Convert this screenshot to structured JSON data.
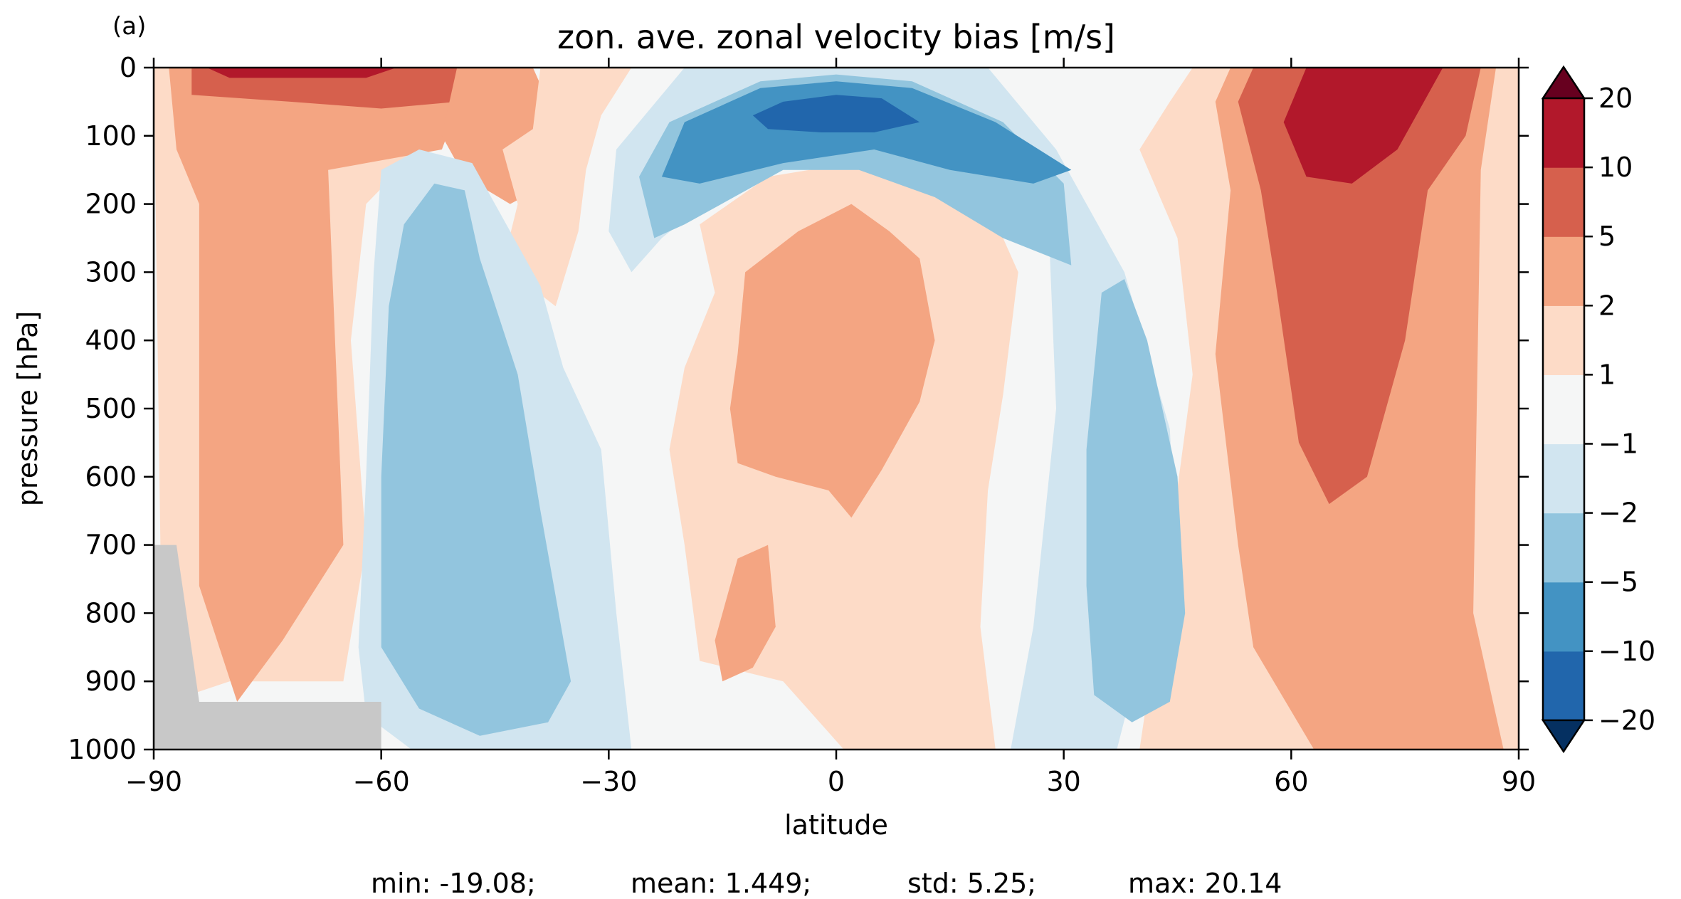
{
  "panel_label": "(a)",
  "stats": {
    "min": "min: -19.08;",
    "mean": "mean: 1.449;",
    "std": "std: 5.25;",
    "max": "max: 20.14"
  },
  "colors": {
    "lt_-20": "#053061",
    "-20_-10": "#2166ac",
    "-10_-5": "#4393c3",
    "-5_-2": "#92c5de",
    "-2_-1": "#d1e5f0",
    "-1_1": "#f5f6f6",
    "1_2": "#fddbc7",
    "2_5": "#f4a582",
    "5_10": "#d6604d",
    "10_20": "#b2182b",
    "gt_20": "#67001f",
    "missing": "#c8c8c8"
  },
  "chart_data": {
    "type": "heatmap",
    "subtype": "filled-contour",
    "title": "zon. ave. zonal velocity bias [m/s]",
    "xlabel": "latitude",
    "ylabel": "pressure [hPa]",
    "xlim": [
      -90,
      90
    ],
    "ylim": [
      1000,
      0
    ],
    "y_inverted": true,
    "xticks": [
      -90,
      -60,
      -30,
      0,
      30,
      60,
      90
    ],
    "xtick_labels": [
      "−90",
      "−60",
      "−30",
      "0",
      "30",
      "60",
      "90"
    ],
    "yticks": [
      0,
      100,
      200,
      300,
      400,
      500,
      600,
      700,
      800,
      900,
      1000
    ],
    "ytick_labels": [
      "0",
      "100",
      "200",
      "300",
      "400",
      "500",
      "600",
      "700",
      "800",
      "900",
      "1000"
    ],
    "grid": false,
    "colorbar": {
      "levels": [
        -20,
        -10,
        -5,
        -2,
        -1,
        1,
        2,
        5,
        10,
        20
      ],
      "tick_labels": [
        "−20",
        "−10",
        "−5",
        "−2",
        "−1",
        "1",
        "2",
        "5",
        "10",
        "20"
      ],
      "extend": "both"
    },
    "background_level": 0,
    "regions": [
      {
        "level": 1.5,
        "pts": [
          [
            -89,
            800
          ],
          [
            -90,
            0
          ],
          [
            -50,
            0
          ],
          [
            -55,
            120
          ],
          [
            -62,
            200
          ],
          [
            -64,
            400
          ],
          [
            -62,
            700
          ],
          [
            -65,
            900
          ],
          [
            -80,
            900
          ],
          [
            -88,
            930
          ]
        ]
      },
      {
        "level": 3.5,
        "pts": [
          [
            -87,
            120
          ],
          [
            -88,
            0
          ],
          [
            -48,
            0
          ],
          [
            -52,
            120
          ],
          [
            -67,
            150
          ],
          [
            -65,
            700
          ],
          [
            -73,
            840
          ],
          [
            -79,
            930
          ],
          [
            -84,
            760
          ],
          [
            -84,
            200
          ]
        ]
      },
      {
        "level": 7.5,
        "pts": [
          [
            -85,
            0
          ],
          [
            -46,
            0
          ],
          [
            -50,
            50
          ],
          [
            -60,
            60
          ],
          [
            -72,
            50
          ],
          [
            -85,
            40
          ]
        ]
      },
      {
        "level": 15,
        "pts": [
          [
            -83,
            0
          ],
          [
            -58,
            0
          ],
          [
            -62,
            15
          ],
          [
            -80,
            15
          ]
        ]
      },
      {
        "level": 3.5,
        "pts": [
          [
            -52,
            100
          ],
          [
            -50,
            0
          ],
          [
            -40,
            0
          ],
          [
            -36,
            100
          ],
          [
            -38,
            170
          ],
          [
            -43,
            200
          ],
          [
            -49,
            160
          ]
        ]
      },
      {
        "level": 1.5,
        "pts": [
          [
            -40,
            90
          ],
          [
            -39,
            0
          ],
          [
            -27,
            0
          ],
          [
            -31,
            70
          ],
          [
            -33,
            150
          ],
          [
            -34,
            240
          ],
          [
            -37,
            350
          ],
          [
            -44,
            290
          ],
          [
            -42,
            200
          ],
          [
            -44,
            120
          ]
        ]
      },
      {
        "level": 1.5,
        "pts": [
          [
            -16,
            330
          ],
          [
            -18,
            230
          ],
          [
            -9,
            160
          ],
          [
            2,
            140
          ],
          [
            12,
            140
          ],
          [
            20,
            200
          ],
          [
            24,
            300
          ],
          [
            22,
            480
          ],
          [
            20,
            620
          ],
          [
            19,
            820
          ],
          [
            21,
            1000
          ],
          [
            1,
            1000
          ],
          [
            -7,
            900
          ],
          [
            -18,
            870
          ],
          [
            -20,
            700
          ],
          [
            -22,
            560
          ],
          [
            -20,
            440
          ]
        ]
      },
      {
        "level": 3.5,
        "pts": [
          [
            -13,
            420
          ],
          [
            -12,
            300
          ],
          [
            -5,
            240
          ],
          [
            2,
            200
          ],
          [
            7,
            240
          ],
          [
            11,
            280
          ],
          [
            13,
            400
          ],
          [
            11,
            490
          ],
          [
            6,
            590
          ],
          [
            2,
            660
          ],
          [
            -1,
            620
          ],
          [
            -8,
            600
          ],
          [
            -13,
            580
          ],
          [
            -14,
            500
          ]
        ]
      },
      {
        "level": 3.5,
        "pts": [
          [
            -16,
            840
          ],
          [
            -13,
            720
          ],
          [
            -9,
            700
          ],
          [
            -8,
            820
          ],
          [
            -11,
            880
          ],
          [
            -15,
            900
          ]
        ]
      },
      {
        "level": 1.5,
        "pts": [
          [
            47,
            0
          ],
          [
            90,
            0
          ],
          [
            90,
            1000
          ],
          [
            40,
            1000
          ],
          [
            44,
            700
          ],
          [
            47,
            450
          ],
          [
            45,
            250
          ],
          [
            40,
            120
          ],
          [
            44,
            50
          ]
        ]
      },
      {
        "level": 3.5,
        "pts": [
          [
            52,
            0
          ],
          [
            87,
            0
          ],
          [
            85,
            150
          ],
          [
            84,
            800
          ],
          [
            88,
            1000
          ],
          [
            63,
            1000
          ],
          [
            55,
            850
          ],
          [
            53,
            700
          ],
          [
            50,
            420
          ],
          [
            52,
            180
          ],
          [
            50,
            50
          ]
        ]
      },
      {
        "level": 7.5,
        "pts": [
          [
            55,
            0
          ],
          [
            85,
            0
          ],
          [
            83,
            100
          ],
          [
            78,
            180
          ],
          [
            75,
            400
          ],
          [
            70,
            600
          ],
          [
            65,
            640
          ],
          [
            61,
            550
          ],
          [
            58,
            320
          ],
          [
            56,
            180
          ],
          [
            53,
            50
          ]
        ]
      },
      {
        "level": 15,
        "pts": [
          [
            62,
            0
          ],
          [
            80,
            0
          ],
          [
            77,
            60
          ],
          [
            74,
            120
          ],
          [
            68,
            170
          ],
          [
            62,
            160
          ],
          [
            59,
            80
          ]
        ]
      },
      {
        "level": -1.5,
        "pts": [
          [
            -63,
            850
          ],
          [
            -62,
            600
          ],
          [
            -61,
            300
          ],
          [
            -60,
            150
          ],
          [
            -55,
            120
          ],
          [
            -48,
            140
          ],
          [
            -45,
            200
          ],
          [
            -39,
            320
          ],
          [
            -36,
            440
          ],
          [
            -31,
            560
          ],
          [
            -29,
            800
          ],
          [
            -27,
            1000
          ],
          [
            -56,
            1000
          ],
          [
            -62,
            950
          ]
        ]
      },
      {
        "level": -3.5,
        "pts": [
          [
            -60,
            850
          ],
          [
            -60,
            600
          ],
          [
            -59,
            350
          ],
          [
            -57,
            230
          ],
          [
            -53,
            170
          ],
          [
            -49,
            180
          ],
          [
            -47,
            280
          ],
          [
            -42,
            450
          ],
          [
            -39,
            650
          ],
          [
            -35,
            900
          ],
          [
            -38,
            960
          ],
          [
            -47,
            980
          ],
          [
            -55,
            940
          ]
        ]
      },
      {
        "level": -1.5,
        "pts": [
          [
            -30,
            240
          ],
          [
            -29,
            120
          ],
          [
            -20,
            0
          ],
          [
            20,
            0
          ],
          [
            29,
            120
          ],
          [
            38,
            300
          ],
          [
            44,
            530
          ],
          [
            45,
            760
          ],
          [
            40,
            870
          ],
          [
            37,
            1000
          ],
          [
            23,
            1000
          ],
          [
            26,
            820
          ],
          [
            29,
            500
          ],
          [
            28,
            230
          ],
          [
            19,
            150
          ],
          [
            3,
            100
          ],
          [
            -12,
            150
          ],
          [
            -23,
            250
          ],
          [
            -27,
            300
          ]
        ]
      },
      {
        "level": -3.5,
        "pts": [
          [
            -26,
            160
          ],
          [
            -22,
            80
          ],
          [
            -10,
            20
          ],
          [
            0,
            10
          ],
          [
            10,
            20
          ],
          [
            22,
            80
          ],
          [
            30,
            170
          ],
          [
            31,
            290
          ],
          [
            22,
            250
          ],
          [
            13,
            190
          ],
          [
            3,
            150
          ],
          [
            -7,
            150
          ],
          [
            -20,
            230
          ],
          [
            -24,
            250
          ]
        ]
      },
      {
        "level": -7.5,
        "pts": [
          [
            -23,
            160
          ],
          [
            -20,
            80
          ],
          [
            -10,
            30
          ],
          [
            0,
            20
          ],
          [
            10,
            30
          ],
          [
            21,
            80
          ],
          [
            31,
            150
          ],
          [
            26,
            170
          ],
          [
            15,
            150
          ],
          [
            5,
            120
          ],
          [
            -7,
            140
          ],
          [
            -18,
            170
          ]
        ]
      },
      {
        "level": -15,
        "pts": [
          [
            -11,
            70
          ],
          [
            -7,
            50
          ],
          [
            0,
            40
          ],
          [
            6,
            45
          ],
          [
            11,
            80
          ],
          [
            5,
            95
          ],
          [
            -2,
            95
          ],
          [
            -9,
            90
          ]
        ]
      },
      {
        "level": -3.5,
        "pts": [
          [
            33,
            760
          ],
          [
            33,
            560
          ],
          [
            35,
            330
          ],
          [
            38,
            310
          ],
          [
            41,
            400
          ],
          [
            45,
            600
          ],
          [
            46,
            800
          ],
          [
            44,
            930
          ],
          [
            39,
            960
          ],
          [
            34,
            920
          ]
        ]
      }
    ],
    "missing_mask": [
      [
        -90,
        700
      ],
      [
        -87,
        700
      ],
      [
        -84,
        930
      ],
      [
        -60,
        930
      ],
      [
        -60,
        1000
      ],
      [
        -90,
        1000
      ]
    ]
  }
}
